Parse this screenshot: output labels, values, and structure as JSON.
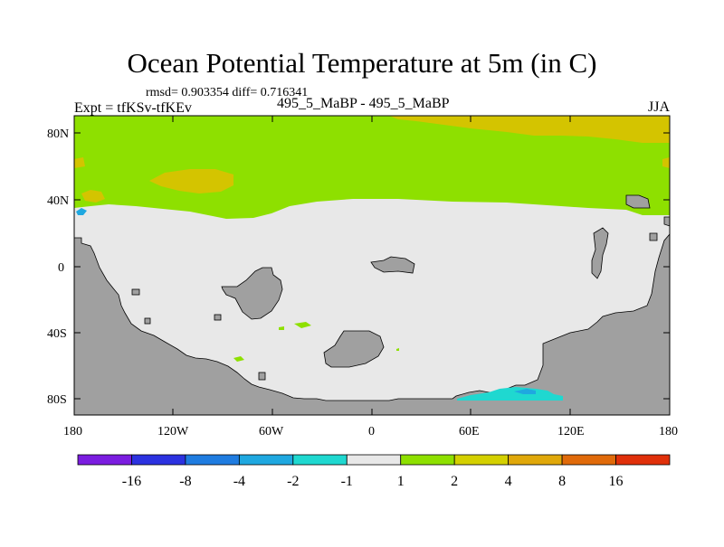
{
  "title": "Ocean Potential Temperature at 5m (in C)",
  "stats": {
    "rmsd_label": "rmsd=",
    "rmsd_value": "0.903354",
    "diff_label": "diff=",
    "diff_value": "0.716341",
    "text": "rmsd= 0.903354 diff= 0.716341"
  },
  "experiment": "Expt = tfKSv-tfKEv",
  "comparison": "495_5_MaBP - 495_5_MaBP",
  "season": "JJA",
  "axes": {
    "y_ticks": [
      "80N",
      "40N",
      "0",
      "40S",
      "80S"
    ],
    "x_ticks": [
      "180",
      "120W",
      "60W",
      "0",
      "60E",
      "120E",
      "180"
    ]
  },
  "colorbar": {
    "colors": [
      "#7b1de0",
      "#2c32e0",
      "#1f7ce0",
      "#1fa8e0",
      "#1fd8d0",
      "#e8e8e8",
      "#8ee000",
      "#d4d000",
      "#e0a80a",
      "#e06a0a",
      "#e0300a"
    ],
    "labels": [
      "-16",
      "-8",
      "-4",
      "-2",
      "-1",
      "1",
      "2",
      "4",
      "8",
      "16"
    ]
  },
  "map_colors": {
    "land": "#a0a0a0",
    "neutral": "#e8e8e8",
    "green": "#8ee000",
    "yellow": "#d4c400",
    "cyan": "#1fd8d0",
    "blue": "#1fa8e0"
  }
}
